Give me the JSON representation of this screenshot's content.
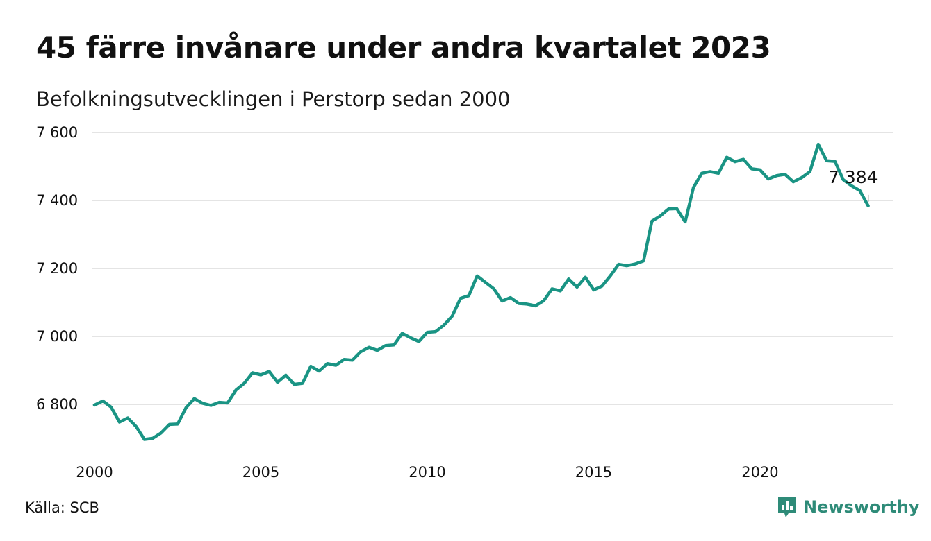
{
  "header": {
    "title": "45 färre invånare under andra kvartalet 2023",
    "subtitle": "Befolkningsutvecklingen i Perstorp sedan 2000"
  },
  "footer": {
    "source": "Källa: SCB",
    "brand": "Newsworthy",
    "brand_icon": "newsworthy-logo-icon"
  },
  "colors": {
    "line": "#1a9484",
    "grid": "#dcdcdc",
    "brand": "#2e8b78"
  },
  "chart_data": {
    "type": "line",
    "title": "45 färre invånare under andra kvartalet 2023",
    "subtitle": "Befolkningsutvecklingen i Perstorp sedan 2000",
    "xlabel": "",
    "ylabel": "",
    "xlim": [
      2000.0,
      2023.3
    ],
    "ylim": [
      6680,
      7600
    ],
    "x_ticks": [
      2000,
      2005,
      2010,
      2015,
      2020
    ],
    "x_tick_labels": [
      "2000",
      "2005",
      "2010",
      "2015",
      "2020"
    ],
    "y_ticks": [
      6800,
      7000,
      7200,
      7400,
      7600
    ],
    "y_tick_labels": [
      "6 800",
      "7 000",
      "7 200",
      "7 400",
      "7 600"
    ],
    "grid": true,
    "annotation": {
      "x": 2023.25,
      "y": 7384,
      "label": "7 384"
    },
    "series": [
      {
        "values": [
          [
            2000.0,
            6798
          ],
          [
            2000.25,
            6810
          ],
          [
            2000.5,
            6792
          ],
          [
            2000.75,
            6748
          ],
          [
            2001.0,
            6760
          ],
          [
            2001.25,
            6735
          ],
          [
            2001.5,
            6697
          ],
          [
            2001.75,
            6700
          ],
          [
            2002.0,
            6716
          ],
          [
            2002.25,
            6741
          ],
          [
            2002.5,
            6742
          ],
          [
            2002.75,
            6790
          ],
          [
            2003.0,
            6817
          ],
          [
            2003.25,
            6803
          ],
          [
            2003.5,
            6797
          ],
          [
            2003.75,
            6806
          ],
          [
            2004.0,
            6804
          ],
          [
            2004.25,
            6842
          ],
          [
            2004.5,
            6862
          ],
          [
            2004.75,
            6893
          ],
          [
            2005.0,
            6887
          ],
          [
            2005.25,
            6897
          ],
          [
            2005.5,
            6865
          ],
          [
            2005.75,
            6886
          ],
          [
            2006.0,
            6859
          ],
          [
            2006.25,
            6862
          ],
          [
            2006.5,
            6912
          ],
          [
            2006.75,
            6898
          ],
          [
            2007.0,
            6920
          ],
          [
            2007.25,
            6915
          ],
          [
            2007.5,
            6932
          ],
          [
            2007.75,
            6930
          ],
          [
            2008.0,
            6955
          ],
          [
            2008.25,
            6968
          ],
          [
            2008.5,
            6959
          ],
          [
            2008.75,
            6973
          ],
          [
            2009.0,
            6975
          ],
          [
            2009.25,
            7009
          ],
          [
            2009.5,
            6996
          ],
          [
            2009.75,
            6985
          ],
          [
            2010.0,
            7012
          ],
          [
            2010.25,
            7014
          ],
          [
            2010.5,
            7033
          ],
          [
            2010.75,
            7060
          ],
          [
            2011.0,
            7112
          ],
          [
            2011.25,
            7120
          ],
          [
            2011.5,
            7178
          ],
          [
            2011.75,
            7159
          ],
          [
            2012.0,
            7140
          ],
          [
            2012.25,
            7104
          ],
          [
            2012.5,
            7114
          ],
          [
            2012.75,
            7097
          ],
          [
            2013.0,
            7095
          ],
          [
            2013.25,
            7090
          ],
          [
            2013.5,
            7105
          ],
          [
            2013.75,
            7140
          ],
          [
            2014.0,
            7134
          ],
          [
            2014.25,
            7169
          ],
          [
            2014.5,
            7145
          ],
          [
            2014.75,
            7174
          ],
          [
            2015.0,
            7137
          ],
          [
            2015.25,
            7148
          ],
          [
            2015.5,
            7178
          ],
          [
            2015.75,
            7212
          ],
          [
            2016.0,
            7208
          ],
          [
            2016.25,
            7213
          ],
          [
            2016.5,
            7222
          ],
          [
            2016.75,
            7339
          ],
          [
            2017.0,
            7354
          ],
          [
            2017.25,
            7375
          ],
          [
            2017.5,
            7376
          ],
          [
            2017.75,
            7337
          ],
          [
            2018.0,
            7438
          ],
          [
            2018.25,
            7480
          ],
          [
            2018.5,
            7485
          ],
          [
            2018.75,
            7480
          ],
          [
            2019.0,
            7527
          ],
          [
            2019.25,
            7514
          ],
          [
            2019.5,
            7521
          ],
          [
            2019.75,
            7493
          ],
          [
            2020.0,
            7490
          ],
          [
            2020.25,
            7463
          ],
          [
            2020.5,
            7473
          ],
          [
            2020.75,
            7477
          ],
          [
            2021.0,
            7455
          ],
          [
            2021.25,
            7467
          ],
          [
            2021.5,
            7485
          ],
          [
            2021.75,
            7565
          ],
          [
            2022.0,
            7517
          ],
          [
            2022.25,
            7515
          ],
          [
            2022.5,
            7461
          ],
          [
            2022.75,
            7443
          ],
          [
            2023.0,
            7429
          ],
          [
            2023.25,
            7384
          ]
        ]
      }
    ]
  }
}
